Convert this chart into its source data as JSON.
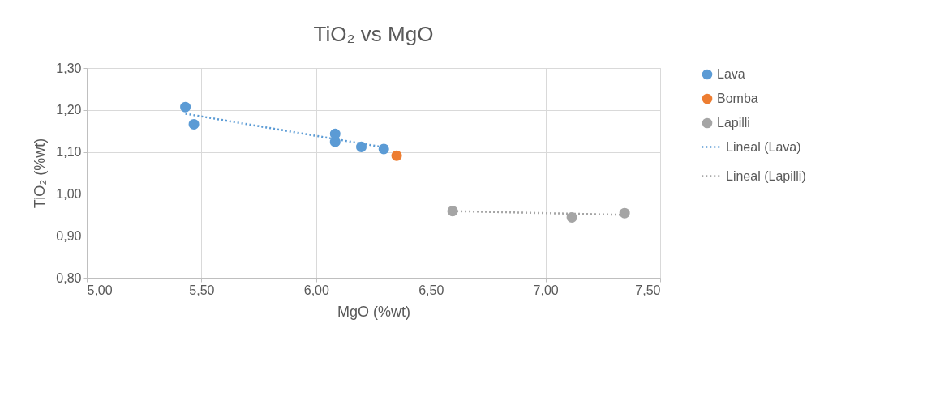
{
  "chart_data": {
    "type": "scatter",
    "title": "TiO₂ vs MgO",
    "xlabel": "MgO (%wt)",
    "ylabel": "TiO₂ (%wt)",
    "xlim": [
      5.0,
      7.5
    ],
    "xticks": [
      {
        "value": 5.0,
        "label": "5,00"
      },
      {
        "value": 5.5,
        "label": "5,50"
      },
      {
        "value": 6.0,
        "label": "6,00"
      },
      {
        "value": 6.5,
        "label": "6,50"
      },
      {
        "value": 7.0,
        "label": "7,00"
      },
      {
        "value": 7.5,
        "label": "7,50"
      }
    ],
    "ylim": [
      0.8,
      1.3
    ],
    "yticks": [
      {
        "value": 0.8,
        "label": "0,80"
      },
      {
        "value": 0.9,
        "label": "0,90"
      },
      {
        "value": 1.0,
        "label": "1,00"
      },
      {
        "value": 1.1,
        "label": "1,10"
      },
      {
        "value": 1.2,
        "label": "1,20"
      },
      {
        "value": 1.3,
        "label": "1,30"
      }
    ],
    "grid": true,
    "legend": "right",
    "series": [
      {
        "name": "Lava",
        "marker": "circle",
        "color": "#5b9bd5",
        "x": [
          5.43,
          5.467,
          6.083,
          6.083,
          6.197,
          6.295
        ],
        "values": [
          1.207,
          1.166,
          1.143,
          1.124,
          1.112,
          1.107
        ]
      },
      {
        "name": "Bomba",
        "marker": "circle",
        "color": "#ed7d31",
        "x": [
          6.351
        ],
        "values": [
          1.091
        ]
      },
      {
        "name": "Lapilli",
        "marker": "circle",
        "color": "#a5a5a5",
        "x": [
          6.595,
          7.115,
          7.345
        ],
        "values": [
          0.959,
          0.944,
          0.954
        ]
      },
      {
        "name": "Lineal (Lava)",
        "type": "line",
        "marker": "none",
        "line_style": "dotted",
        "color": "#5b9bd5",
        "x": [
          5.43,
          6.295
        ],
        "values": [
          1.191,
          1.111
        ]
      },
      {
        "name": "Lineal (Lapilli)",
        "type": "line",
        "marker": "none",
        "line_style": "dotted",
        "color": "#a5a5a5",
        "x": [
          6.595,
          7.345
        ],
        "values": [
          0.959,
          0.95
        ]
      }
    ]
  }
}
